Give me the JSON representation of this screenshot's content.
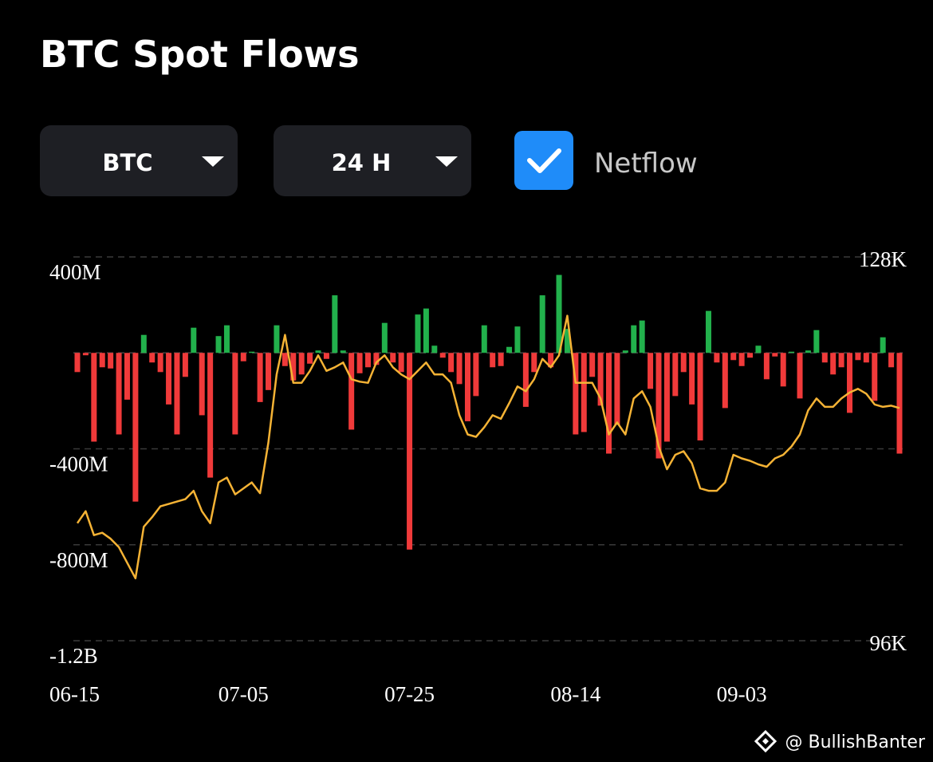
{
  "controls": {
    "coin": "BTC",
    "interval": "24 H",
    "netflow_label": "Netflow",
    "netflow_checked": true
  },
  "watermark": "@ BullishBanter",
  "chart_data": {
    "type": "bar",
    "title": "BTC Spot Flows",
    "categories": [
      "06-15",
      null,
      null,
      null,
      null,
      null,
      null,
      null,
      null,
      null,
      null,
      null,
      null,
      null,
      null,
      null,
      null,
      null,
      null,
      null,
      "07-05",
      null,
      null,
      null,
      null,
      null,
      null,
      null,
      null,
      null,
      null,
      null,
      null,
      null,
      null,
      null,
      null,
      null,
      null,
      null,
      "07-25",
      null,
      null,
      null,
      null,
      null,
      null,
      null,
      null,
      null,
      null,
      null,
      null,
      null,
      null,
      null,
      null,
      null,
      null,
      null,
      "08-14",
      null,
      null,
      null,
      null,
      null,
      null,
      null,
      null,
      null,
      null,
      null,
      null,
      null,
      null,
      null,
      null,
      null,
      null,
      null,
      "09-03",
      null,
      null,
      null,
      null,
      null,
      null,
      null,
      null,
      null,
      null,
      null,
      null,
      null,
      null,
      null,
      null,
      null,
      null,
      null
    ],
    "series": [
      {
        "type": "bar",
        "positive_color": "#22b14c",
        "negative_color": "#f03a3a",
        "values": [
          -80,
          -10,
          -370,
          -60,
          -65,
          -340,
          -195,
          -620,
          75,
          -40,
          -80,
          -215,
          -340,
          -100,
          105,
          -260,
          -520,
          70,
          115,
          -340,
          -35,
          5,
          -205,
          -155,
          115,
          -55,
          -115,
          -90,
          -45,
          10,
          -25,
          240,
          10,
          -320,
          -85,
          -60,
          -50,
          125,
          -40,
          -80,
          -820,
          160,
          185,
          30,
          -20,
          -80,
          -130,
          -285,
          -180,
          115,
          -60,
          -55,
          25,
          110,
          -225,
          -80,
          240,
          -60,
          325,
          100,
          -340,
          -330,
          -100,
          -220,
          -420,
          -300,
          10,
          115,
          135,
          -150,
          -440,
          -370,
          -180,
          -80,
          -215,
          -365,
          175,
          -40,
          -230,
          -30,
          -55,
          -20,
          30,
          -110,
          -15,
          -140,
          5,
          -190,
          10,
          95,
          -40,
          -90,
          -60,
          -250,
          -30,
          -40,
          -200,
          65,
          -60,
          -420
        ]
      },
      {
        "type": "line",
        "axis": "y2",
        "color": "#f5b335",
        "values": [
          105800,
          106800,
          104800,
          105000,
          104500,
          103800,
          102500,
          101200,
          105500,
          106300,
          107200,
          107400,
          107600,
          107800,
          108500,
          106800,
          105800,
          109200,
          109600,
          108200,
          108700,
          109200,
          108300,
          112500,
          118200,
          121500,
          117500,
          117500,
          118500,
          119800,
          118500,
          118800,
          119200,
          117800,
          117600,
          117500,
          119200,
          119800,
          118800,
          118200,
          117800,
          118500,
          119200,
          118200,
          118200,
          117500,
          114800,
          113200,
          113000,
          113800,
          114800,
          114500,
          115800,
          117200,
          116800,
          117800,
          119500,
          118800,
          119800,
          123100,
          117500,
          117500,
          117500,
          116200,
          113200,
          114200,
          113200,
          116200,
          116800,
          115500,
          112200,
          110300,
          111500,
          111800,
          110800,
          108700,
          108500,
          108500,
          109200,
          111500,
          111200,
          111000,
          110700,
          110500,
          111200,
          111500,
          112200,
          113200,
          115200,
          116200,
          115500,
          115500,
          116200,
          116700,
          117000,
          116600,
          115700,
          115500,
          115600,
          115400
        ]
      }
    ],
    "ylim": [
      -1200,
      400
    ],
    "yticks": [
      {
        "value": 400,
        "label": "400M"
      },
      {
        "value": -400,
        "label": "-400M"
      },
      {
        "value": -800,
        "label": "-800M"
      },
      {
        "value": -1200,
        "label": "-1.2B"
      }
    ],
    "y2lim": [
      96000,
      128000
    ],
    "y2ticks": [
      {
        "value": 128000,
        "label": "128K"
      },
      {
        "value": 96000,
        "label": "96K"
      }
    ],
    "grid": true
  }
}
